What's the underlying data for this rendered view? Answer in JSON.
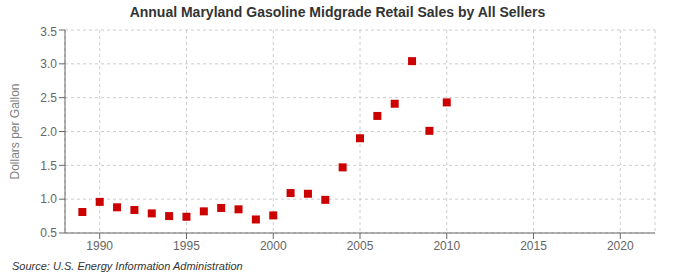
{
  "chart_data": {
    "type": "scatter",
    "title": "Annual Maryland Gasoline Midgrade Retail Sales by All Sellers",
    "ylabel": "Dollars per Gallon",
    "annotations": [
      "Source: U.S. Energy Information Administration"
    ],
    "x": [
      1989,
      1990,
      1991,
      1992,
      1993,
      1994,
      1995,
      1996,
      1997,
      1998,
      1999,
      2000,
      2001,
      2002,
      2003,
      2004,
      2005,
      2006,
      2007,
      2008,
      2009,
      2010
    ],
    "values": [
      0.81,
      0.96,
      0.88,
      0.84,
      0.79,
      0.75,
      0.74,
      0.82,
      0.87,
      0.85,
      0.7,
      0.76,
      1.09,
      1.08,
      0.99,
      1.47,
      1.9,
      2.23,
      2.41,
      3.04,
      2.01,
      2.43
    ],
    "color": "#cc0000",
    "marker": "square",
    "xlim": [
      1988.0,
      2022.0
    ],
    "ylim": [
      0.5,
      3.5
    ],
    "xticks": [
      1990,
      1995,
      2000,
      2005,
      2010,
      2015,
      2020
    ],
    "yticks": [
      0.5,
      {
        "value": 1.0,
        "label": "1.0"
      },
      1.5,
      {
        "value": 2.0,
        "label": "2.0"
      },
      2.5,
      {
        "value": 3.0,
        "label": "3.0"
      },
      3.5
    ],
    "grid": true
  }
}
